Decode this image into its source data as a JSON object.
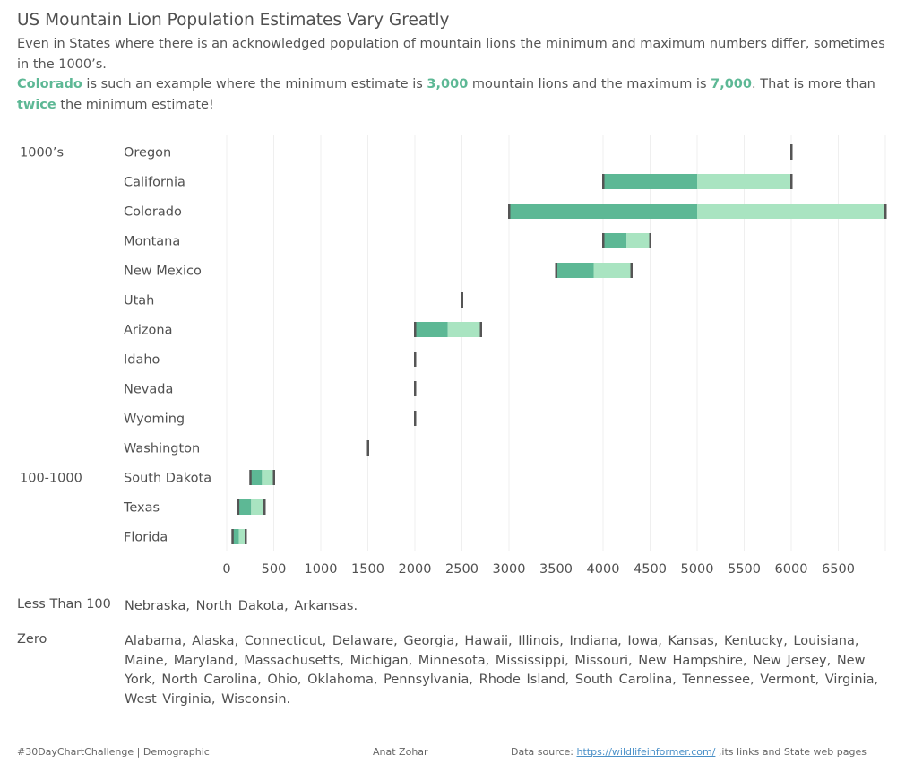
{
  "title": "US Mountain Lion Population Estimates Vary Greatly",
  "subtitle_line1": "Even in States where there is an acknowledged population of mountain lions the minimum and maximum numbers differ, sometimes in the 1000’s.",
  "subtitle_line2": {
    "state": "Colorado",
    "text_a": " is such an example where the minimum estimate is ",
    "min": "3,000",
    "text_b": " mountain lions and the maximum is ",
    "max": "7,000",
    "text_c": ". That is more than ",
    "twice": "twice",
    "text_d": " the minimum estimate!"
  },
  "colors": {
    "dark_green": "#5db895",
    "light_green": "#a9e4c1",
    "cap": "#555555",
    "highlight": "#5db895"
  },
  "chart_data": {
    "type": "bar",
    "orientation": "horizontal-range",
    "groups": [
      {
        "label": "1000’s",
        "first_index": 0
      },
      {
        "label": "100-1000",
        "first_index": 11
      }
    ],
    "categories": [
      "Oregon",
      "California",
      "Colorado",
      "Montana",
      "New Mexico",
      "Utah",
      "Arizona",
      "Idaho",
      "Nevada",
      "Wyoming",
      "Washington",
      "South Dakota",
      "Texas",
      "Florida"
    ],
    "min": [
      6000,
      4000,
      3000,
      4000,
      3500,
      2500,
      2000,
      2000,
      2000,
      2000,
      1500,
      250,
      120,
      60
    ],
    "mid": [
      6000,
      5000,
      5000,
      4250,
      3900,
      2500,
      2350,
      2000,
      2000,
      2000,
      1500,
      375,
      260,
      130
    ],
    "max": [
      6000,
      6000,
      7000,
      4500,
      4300,
      2500,
      2700,
      2000,
      2000,
      2000,
      1500,
      500,
      400,
      200
    ],
    "xticks": [
      0,
      500,
      1000,
      1500,
      2000,
      2500,
      3000,
      3500,
      4000,
      4500,
      5000,
      5500,
      6000,
      6500
    ],
    "xlim": [
      0,
      7000
    ],
    "grid": true
  },
  "less_than_100": {
    "label": "Less Than 100",
    "states": "Nebraska, North Dakota, Arkansas."
  },
  "zero": {
    "label": "Zero",
    "states": "Alabama, Alaska, Connecticut, Delaware, Georgia, Hawaii, Illinois, Indiana, Iowa, Kansas, Kentucky, Louisiana, Maine, Maryland, Massachusetts, Michigan, Minnesota, Mississippi, Missouri, New Hampshire, New Jersey, New York, North Carolina, Ohio, Oklahoma, Pennsylvania, Rhode Island, South Carolina, Tennessee, Vermont, Virginia, West Virginia, Wisconsin."
  },
  "footer": {
    "left": "#30DayChartChallenge | Demographic",
    "author": "Anat Zohar",
    "source_prefix": "Data source: ",
    "source_link": "https://wildlifeinformer.com/",
    "source_suffix": " ,its links and  State web pages"
  }
}
